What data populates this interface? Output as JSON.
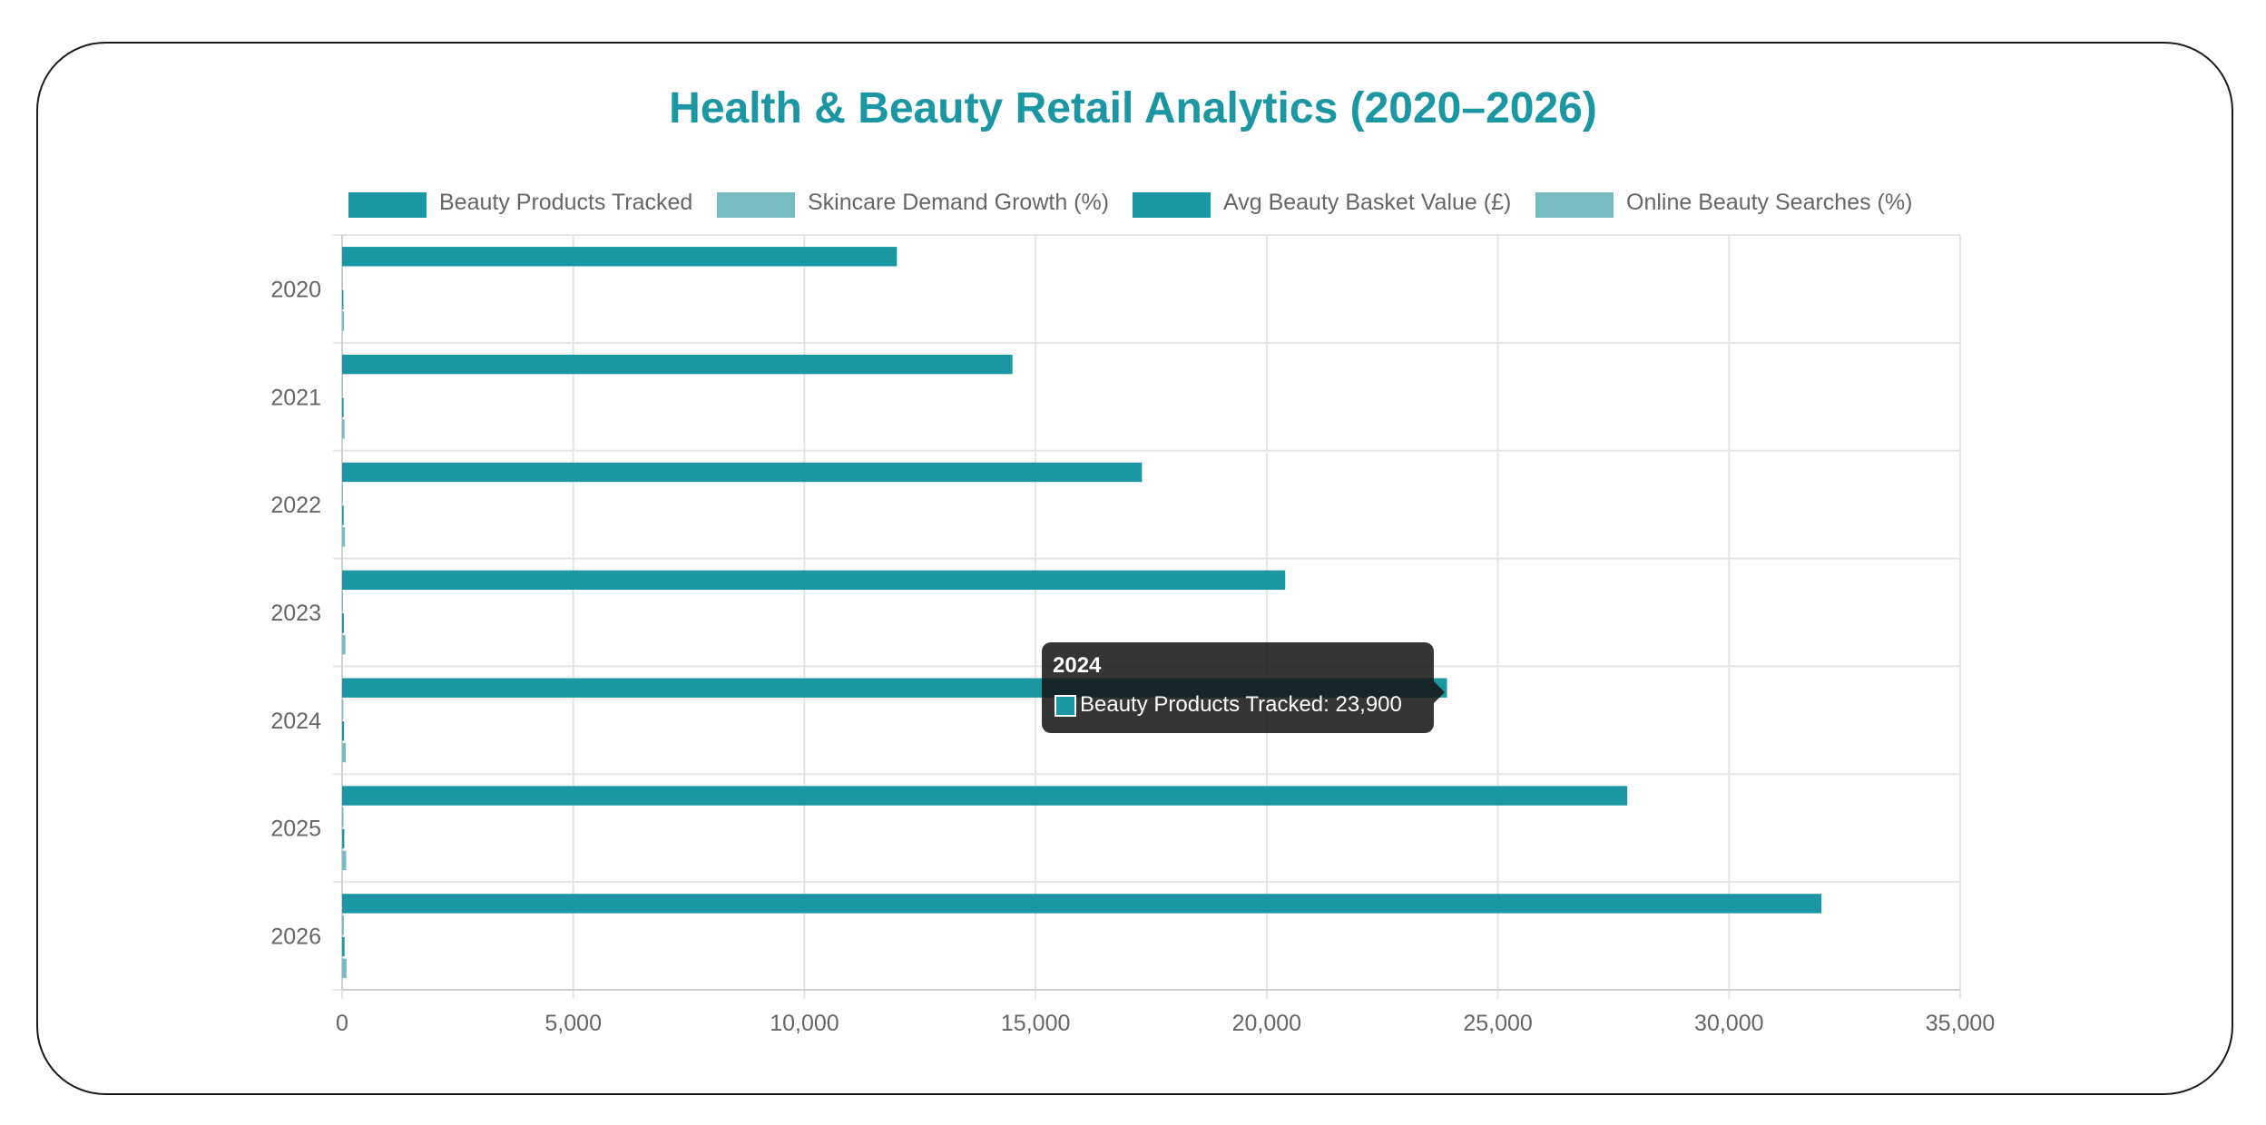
{
  "chart_data": {
    "type": "bar",
    "orientation": "horizontal",
    "title": "Health & Beauty Retail Analytics (2020–2026)",
    "categories": [
      "2020",
      "2021",
      "2022",
      "2023",
      "2024",
      "2025",
      "2026"
    ],
    "series": [
      {
        "name": "Beauty Products Tracked",
        "values": [
          12000,
          14500,
          17300,
          20400,
          23900,
          27800,
          32000
        ],
        "color": "#1b96a3"
      },
      {
        "name": "Skincare Demand Growth (%)",
        "values": [
          8,
          12,
          16,
          21,
          26,
          31,
          37
        ],
        "color": "#76bcc0"
      },
      {
        "name": "Avg Beauty Basket Value (£)",
        "values": [
          28,
          31,
          34,
          38,
          42,
          47,
          52
        ],
        "color": "#1b96a3"
      },
      {
        "name": "Online Beauty Searches (%)",
        "values": [
          40,
          52,
          63,
          72,
          81,
          88,
          95
        ],
        "color": "#76bcc0"
      }
    ],
    "xlim": [
      0,
      35000
    ],
    "x_ticks": [
      "0",
      "5,000",
      "10,000",
      "15,000",
      "20,000",
      "25,000",
      "30,000",
      "35,000"
    ],
    "grid": true,
    "legend_position": "top",
    "tooltip": {
      "title": "2024",
      "label": "Beauty Products Tracked: 23,900"
    }
  }
}
